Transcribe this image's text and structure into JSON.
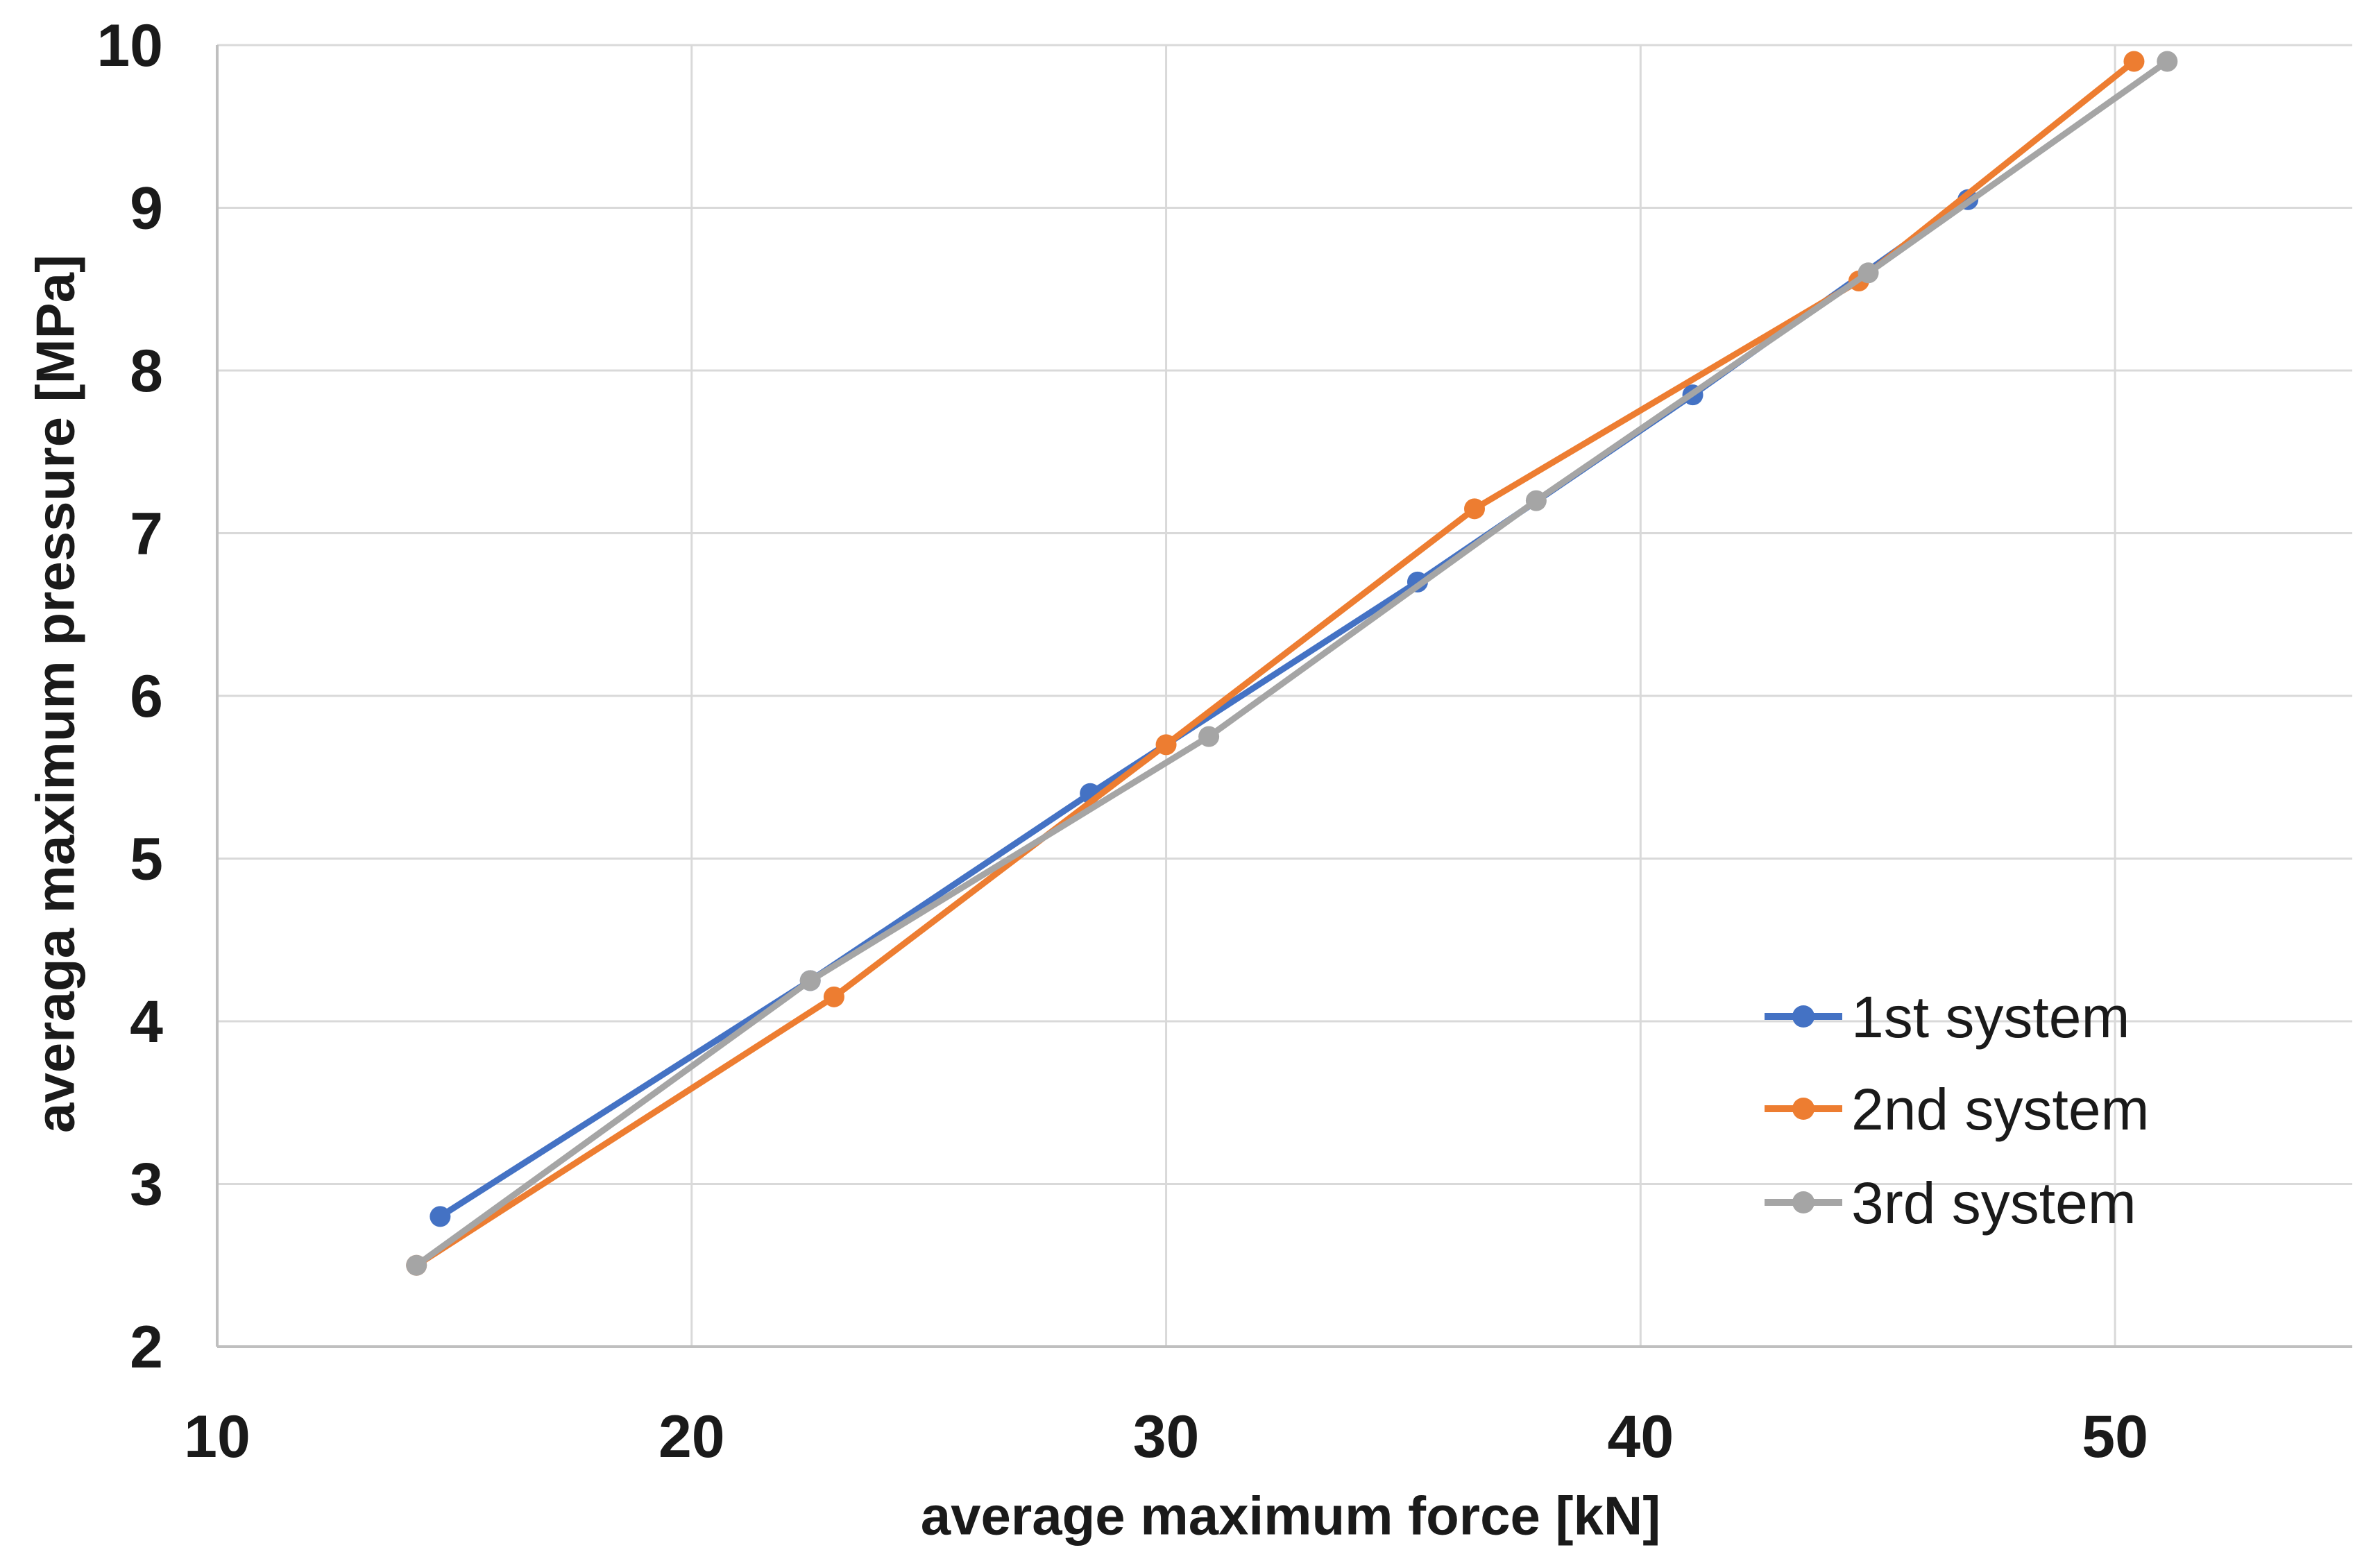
{
  "page": {
    "background": "#FFFFFF",
    "text_color": "#1A1A1A",
    "grid_color": "#D9D9D9",
    "axis_color": "#BFBFBF"
  },
  "chart_data": {
    "type": "line",
    "title": "",
    "xlabel": "average maximum force [kN]",
    "ylabel": "averaga maximum pressure [MPa]",
    "xlim": [
      10,
      55
    ],
    "ylim": [
      2,
      10
    ],
    "xticks": [
      10,
      20,
      30,
      40,
      50
    ],
    "yticks": [
      2,
      3,
      4,
      5,
      6,
      7,
      8,
      9,
      10
    ],
    "grid": true,
    "legend_position": "inside-lower-right",
    "marker": "circle",
    "series": [
      {
        "name": "1st system",
        "color": "#4472C4",
        "x": [
          14.7,
          22.5,
          28.4,
          35.3,
          41.1,
          46.9
        ],
        "y": [
          2.8,
          4.25,
          5.4,
          6.7,
          7.85,
          9.05
        ]
      },
      {
        "name": "2nd system",
        "color": "#ED7D31",
        "x": [
          14.2,
          23.0,
          30.0,
          36.5,
          44.6,
          50.4
        ],
        "y": [
          2.5,
          4.15,
          5.7,
          7.15,
          8.55,
          9.9
        ]
      },
      {
        "name": "3rd system",
        "color": "#A5A5A5",
        "x": [
          14.2,
          22.5,
          30.9,
          37.8,
          44.8,
          51.1
        ],
        "y": [
          2.5,
          4.25,
          5.75,
          7.2,
          8.6,
          9.9
        ]
      }
    ]
  }
}
